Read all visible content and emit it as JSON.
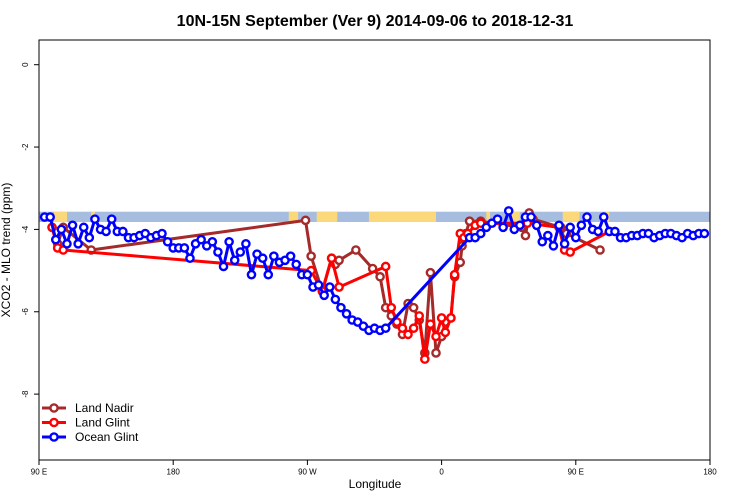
{
  "chart_data": {
    "type": "line",
    "title": "10N-15N September (Ver 9)   2014-09-06 to 2018-12-31",
    "xlabel": "Longitude",
    "ylabel": "XCO2 - MLO trend (ppm)",
    "xlim": [
      -180,
      180
    ],
    "ylim": [
      -9.6,
      0.6
    ],
    "x_ticks": [
      {
        "value": -180,
        "label": "90 E"
      },
      {
        "value": -108,
        "label": "180"
      },
      {
        "value": -36,
        "label": "90 W"
      },
      {
        "value": 36,
        "label": "0"
      },
      {
        "value": 108,
        "label": "90 E"
      },
      {
        "value": 180,
        "label": "180"
      }
    ],
    "y_ticks": [
      {
        "value": 0,
        "label": "0"
      },
      {
        "value": -2,
        "label": "-2"
      },
      {
        "value": -4,
        "label": "-4"
      },
      {
        "value": -6,
        "label": "-6"
      },
      {
        "value": -8,
        "label": "-8"
      }
    ],
    "grid": false,
    "legend_position": "bottom-left",
    "land_mask": {
      "ocean_color": "#a7bde0",
      "land_color": "#fbd97a",
      "ymin": -3.82,
      "ymax": -3.57,
      "land_ranges": [
        [
          -172,
          -165
        ],
        [
          -152,
          -150
        ],
        [
          -46,
          -41
        ],
        [
          -31,
          -20
        ],
        [
          -3,
          33
        ],
        [
          60,
          62
        ],
        [
          73,
          78
        ],
        [
          101,
          110
        ],
        [
          124,
          126
        ]
      ]
    },
    "series": [
      {
        "name": "Land Nadir",
        "color": "#a52a2a",
        "x": [
          -173,
          -170,
          -167,
          -152,
          -37,
          -34,
          -28,
          -23,
          -21,
          -19,
          -10,
          -1,
          3,
          6,
          9,
          12,
          15,
          18,
          21,
          24,
          27,
          30,
          33,
          36,
          38,
          41,
          43,
          46,
          47,
          49,
          51,
          57,
          79,
          81,
          83,
          85,
          100,
          103,
          121
        ],
        "y": [
          -3.95,
          -4.35,
          -3.95,
          -4.5,
          -3.78,
          -4.65,
          -5.5,
          -4.7,
          -4.85,
          -4.75,
          -4.5,
          -4.95,
          -5.15,
          -5.9,
          -6.1,
          -6.3,
          -6.55,
          -5.8,
          -5.9,
          -6.2,
          -7.0,
          -5.05,
          -7.0,
          -6.6,
          -6.25,
          -6.15,
          -5.15,
          -4.8,
          -4.4,
          -4.1,
          -3.8,
          -3.8,
          -3.95,
          -4.15,
          -3.6,
          -3.75,
          -3.95,
          -4.1,
          -4.5
        ]
      },
      {
        "name": "Land Glint",
        "color": "#ff0000",
        "x": [
          -173,
          -170,
          -167,
          -34,
          -28,
          -23,
          -19,
          6,
          9,
          12,
          15,
          18,
          21,
          24,
          27,
          30,
          33,
          36,
          38,
          41,
          43,
          46,
          48,
          50,
          54,
          57,
          82,
          99,
          102,
          105,
          126
        ],
        "y": [
          -3.95,
          -4.45,
          -4.5,
          -5.0,
          -5.5,
          -4.7,
          -5.4,
          -4.9,
          -5.9,
          -6.25,
          -6.4,
          -6.55,
          -6.4,
          -6.1,
          -7.15,
          -6.3,
          -6.6,
          -6.15,
          -6.5,
          -6.15,
          -5.1,
          -4.1,
          -4.2,
          -4.1,
          -3.9,
          -3.85,
          -3.85,
          -3.95,
          -4.5,
          -4.55,
          -4.05
        ]
      },
      {
        "name": "Ocean Glint",
        "color": "#0000ff",
        "x": [
          -177,
          -174,
          -171,
          -168,
          -165,
          -162,
          -159,
          -156,
          -153,
          -150,
          -147,
          -144,
          -141,
          -138,
          -135,
          -132,
          -129,
          -126,
          -123,
          -120,
          -117,
          -114,
          -111,
          -108,
          -105,
          -102,
          -99,
          -96,
          -93,
          -90,
          -87,
          -84,
          -81,
          -78,
          -75,
          -72,
          -69,
          -66,
          -63,
          -60,
          -57,
          -54,
          -51,
          -48,
          -45,
          -42,
          -39,
          -36,
          -33,
          -30,
          -27,
          -24,
          -21,
          -18,
          -15,
          -12,
          -9,
          -6,
          -3,
          0,
          3,
          6,
          51,
          54,
          57,
          60,
          63,
          66,
          69,
          72,
          75,
          78,
          81,
          84,
          87,
          90,
          93,
          96,
          99,
          102,
          105,
          108,
          111,
          114,
          117,
          120,
          123,
          126,
          129,
          132,
          135,
          138,
          141,
          144,
          147,
          150,
          153,
          156,
          159,
          162,
          165,
          168,
          171,
          174,
          177
        ],
        "y": [
          -3.7,
          -3.7,
          -4.25,
          -4.0,
          -4.35,
          -3.9,
          -4.35,
          -3.95,
          -4.2,
          -3.75,
          -4.0,
          -4.05,
          -3.75,
          -4.05,
          -4.05,
          -4.2,
          -4.2,
          -4.15,
          -4.1,
          -4.2,
          -4.15,
          -4.1,
          -4.3,
          -4.45,
          -4.45,
          -4.45,
          -4.7,
          -4.35,
          -4.25,
          -4.4,
          -4.3,
          -4.55,
          -4.9,
          -4.3,
          -4.75,
          -4.55,
          -4.35,
          -5.1,
          -4.6,
          -4.7,
          -5.1,
          -4.65,
          -4.8,
          -4.75,
          -4.65,
          -4.85,
          -5.1,
          -5.1,
          -5.4,
          -5.35,
          -5.6,
          -5.4,
          -5.7,
          -5.9,
          -6.05,
          -6.2,
          -6.25,
          -6.35,
          -6.45,
          -6.4,
          -6.45,
          -6.4,
          -4.2,
          -4.2,
          -4.1,
          -3.95,
          -3.85,
          -3.75,
          -3.95,
          -3.55,
          -4.0,
          -3.9,
          -3.7,
          -3.7,
          -3.9,
          -4.3,
          -4.15,
          -4.4,
          -3.9,
          -4.35,
          -3.95,
          -4.2,
          -3.9,
          -3.7,
          -4.0,
          -4.05,
          -3.7,
          -4.05,
          -4.05,
          -4.2,
          -4.2,
          -4.15,
          -4.15,
          -4.1,
          -4.1,
          -4.2,
          -4.15,
          -4.1,
          -4.1,
          -4.15,
          -4.2,
          -4.1,
          -4.15,
          -4.1,
          -4.1
        ]
      }
    ]
  }
}
